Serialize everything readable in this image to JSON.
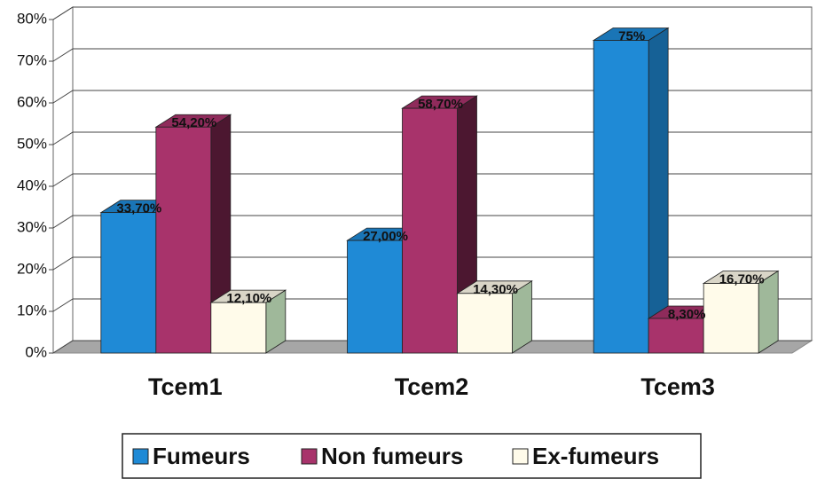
{
  "chart_data": {
    "type": "bar3d",
    "categories": [
      "Tcem1",
      "Tcem2",
      "Tcem3"
    ],
    "series": [
      {
        "name": "Fumeurs",
        "color": "#1f8ad6",
        "values": [
          33.7,
          27.0,
          75
        ],
        "value_labels": [
          "33,70%",
          "27,00%",
          "75%"
        ]
      },
      {
        "name": "Non fumeurs",
        "color": "#a8336b",
        "values": [
          54.2,
          58.7,
          8.3
        ],
        "value_labels": [
          "54,20%",
          "58,70%",
          "8,30%"
        ]
      },
      {
        "name": "Ex-fumeurs",
        "color": "#fffbea",
        "values": [
          12.1,
          14.3,
          16.7
        ],
        "value_labels": [
          "12,10%",
          "14,30%",
          "16,70%"
        ]
      }
    ],
    "ylim": [
      0,
      80
    ],
    "yticks": [
      {
        "value": 0,
        "label": "0%"
      },
      {
        "value": 10,
        "label": "10%"
      },
      {
        "value": 20,
        "label": "20%"
      },
      {
        "value": 30,
        "label": "30%"
      },
      {
        "value": 40,
        "label": "40%"
      },
      {
        "value": 50,
        "label": "50%"
      },
      {
        "value": 60,
        "label": "60%"
      },
      {
        "value": 70,
        "label": "70%"
      },
      {
        "value": 80,
        "label": "80%"
      }
    ],
    "grid": true,
    "legend": "bottom"
  }
}
